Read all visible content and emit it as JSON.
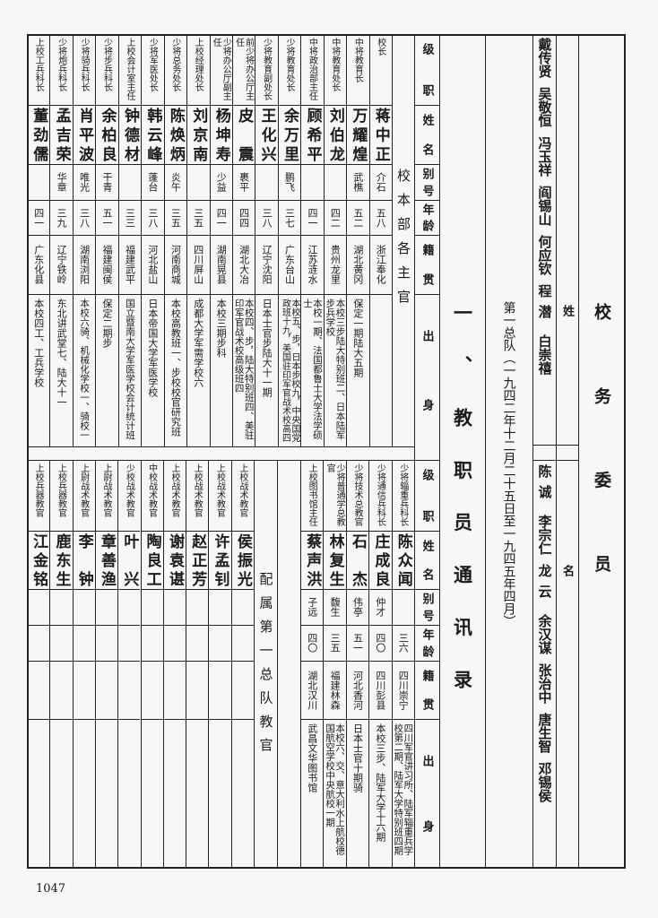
{
  "committee": {
    "title": "校务委员",
    "header": [
      "姓",
      "名"
    ],
    "names_upper": [
      "戴传贤",
      "吴敬恒",
      "冯玉祥",
      "阎锡山",
      "何应钦",
      "程潜",
      "白崇禧"
    ],
    "names_lower": [
      "陈诚",
      "李宗仁",
      "龙云",
      "余汉谋",
      "张治中",
      "唐生智",
      "邓锡侯"
    ]
  },
  "section_title": "一、教职员通讯录",
  "subtitle": "第一总队（一九四二年十二月二十五日至一九四五年四月）",
  "headers": [
    "级职",
    "姓名",
    "别号",
    "年龄",
    "籍贯",
    "出身"
  ],
  "upper": {
    "group_label": "校本部各主官",
    "rows": [
      {
        "title": "校长",
        "name": "蒋中正",
        "alias": "介石",
        "age": "五八",
        "native": "浙江奉化",
        "background": ""
      },
      {
        "title": "中将教育长",
        "name": "万耀煌",
        "alias": "武樵",
        "age": "五二",
        "native": "湖北黄冈",
        "background": "保定一期陆大五期"
      },
      {
        "title": "中将教育处长",
        "name": "刘伯龙",
        "alias": "",
        "age": "四二",
        "native": "贵州龙里",
        "background": "本校三步陆大特别班二、日本陆军步兵学校"
      },
      {
        "title": "中将政治部主任",
        "name": "顾希平",
        "alias": "",
        "age": "四一",
        "native": "江苏涟水",
        "background": "本校一期、法国都鲁士大学法学硕士"
      },
      {
        "title": "少将教育处长",
        "name": "余万里",
        "alias": "鹏飞",
        "age": "三七",
        "native": "广东台山",
        "background": "本校五、步，日本步校九，中央国党政班十九，美国驻印军官战术校高四"
      },
      {
        "title": "少将教育副处长",
        "name": "王化兴",
        "alias": "",
        "age": "三八",
        "native": "辽宁沈阳",
        "background": "日本士官步陆大十一期"
      },
      {
        "title": "前少将办公厅主任",
        "name": "皮震",
        "alias": "裹平",
        "age": "四四",
        "native": "湖北大冶",
        "background": "本校四、步，陆大特别班四、美驻印军官战术校高级班四"
      },
      {
        "title": "少将办公厅副主任",
        "name": "杨坤寿",
        "alias": "少益",
        "age": "四一",
        "native": "湖南晃县",
        "background": "本校三期步科"
      },
      {
        "title": "上校经理处长",
        "name": "刘京南",
        "alias": "",
        "age": "三五",
        "native": "四川屏山",
        "background": "成都大学军需学校六"
      },
      {
        "title": "少将总务处长",
        "name": "陈焕炳",
        "alias": "炎午",
        "age": "三五",
        "native": "河南商城",
        "background": "本校高教班一、步校校官研究班"
      },
      {
        "title": "少将军医处长",
        "name": "韩云峰",
        "alias": "蓬台",
        "age": "三八",
        "native": "河北盐山",
        "background": "日本帝国大学军医学校"
      },
      {
        "title": "上校会计室主任",
        "name": "钟德材",
        "alias": "",
        "age": "三三",
        "native": "福建武平",
        "background": "国立暨南大学军医学校会计统计班"
      },
      {
        "title": "少将步兵科长",
        "name": "余柏良",
        "alias": "干青",
        "age": "五一",
        "native": "福建闽侯",
        "background": "保定二期步"
      },
      {
        "title": "少将骑兵科长",
        "name": "肖平波",
        "alias": "唯光",
        "age": "三八",
        "native": "湖南浏阳",
        "background": "本校六骑、机械化学校一、骑校一"
      },
      {
        "title": "少将炮兵科长",
        "name": "孟吉荣",
        "alias": "华章",
        "age": "三九",
        "native": "辽宁铁岭",
        "background": "东北讲武堂七、陆大十一"
      },
      {
        "title": "上校工兵科长",
        "name": "董劲儒",
        "alias": "",
        "age": "四一",
        "native": "广东化县",
        "background": "本校四工、工兵学校"
      }
    ]
  },
  "lower": {
    "group_label": "配属第一总队教官",
    "rows_right": [
      {
        "title": "少将辎重兵科长",
        "name": "陈众闻",
        "alias": "",
        "age": "三六",
        "native": "四川崇宁",
        "background": "四川军官讲习所、陆军辎重兵学校第二期、陆军大学特别班四期"
      },
      {
        "title": "少将通信兵科长",
        "name": "庄成良",
        "alias": "仲才",
        "age": "四〇",
        "native": "四川彭县",
        "background": "本校三步、陆军大学十六期"
      },
      {
        "title": "少将技术总教官",
        "name": "石杰",
        "alias": "伟亭",
        "age": "五一",
        "native": "河北香河",
        "background": "日本士官十期骑"
      },
      {
        "title": "少将普通学总教官",
        "name": "林复生",
        "alias": "馥生",
        "age": "三五",
        "native": "福建林森",
        "background": "本校六、交、意大利水上航校德国航空学校中央航校一期"
      },
      {
        "title": "上校图书馆主任",
        "name": "蔡声洪",
        "alias": "子远",
        "age": "四〇",
        "native": "湖北汉川",
        "background": "武昌文华图书馆"
      }
    ],
    "rows_left": [
      {
        "title": "上校战术教官",
        "name": "侯振光"
      },
      {
        "title": "上校战术教官",
        "name": "许孟钊"
      },
      {
        "title": "上校战术教官",
        "name": "赵正芳"
      },
      {
        "title": "上校战术教官",
        "name": "谢袁谌"
      },
      {
        "title": "中校战术教官",
        "name": "陶良工"
      },
      {
        "title": "少校战术教官",
        "name": "叶兴"
      },
      {
        "title": "上尉战术教官",
        "name": "章善渔"
      },
      {
        "title": "上尉战术教官",
        "name": "李钟"
      },
      {
        "title": "上校兵器教官",
        "name": "鹿东生"
      },
      {
        "title": "上校兵器教官",
        "name": "江金铭"
      }
    ]
  },
  "page_number": "1047"
}
